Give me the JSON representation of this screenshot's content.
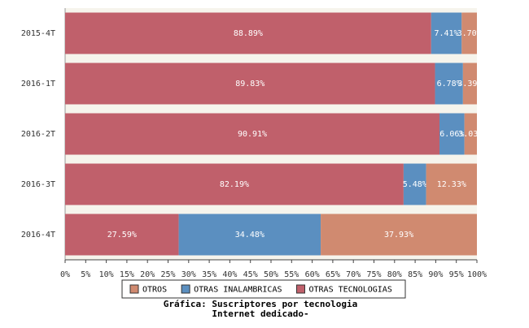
{
  "chart_data": {
    "type": "stacked_bar_horizontal",
    "title": "Gráfica: Suscriptores por tecnologia",
    "subtitle": "Internet dedicado-",
    "categories": [
      "2015-4T",
      "2016-1T",
      "2016-2T",
      "2016-3T",
      "2016-4T"
    ],
    "series": [
      {
        "name": "OTRAS TECNOLOGIAS",
        "color": "#c0606b",
        "values": [
          88.89,
          89.83,
          90.91,
          82.19,
          27.59
        ],
        "value_labels": [
          "88.89%",
          "89.83%",
          "90.91%",
          "82.19%",
          "27.59%"
        ]
      },
      {
        "name": "OTRAS INALAMBRICAS",
        "color": "#5b8fc0",
        "values": [
          7.41,
          6.78,
          6.06,
          5.48,
          34.48
        ],
        "value_labels": [
          "7.41%",
          "6.78%",
          "6.06%",
          "5.48%",
          "34.48%"
        ]
      },
      {
        "name": "OTROS",
        "color": "#d08a70",
        "values": [
          3.7,
          3.39,
          3.03,
          12.33,
          37.93
        ],
        "value_labels": [
          "3.70%",
          "3.39%",
          "3.03%",
          "12.33%",
          "37.93%"
        ]
      }
    ],
    "xlim": [
      0,
      100
    ],
    "xticks": [
      {
        "value": 0,
        "label": "0%"
      },
      {
        "value": 5,
        "label": "5%"
      },
      {
        "value": 10,
        "label": "10%"
      },
      {
        "value": 15,
        "label": "15%"
      },
      {
        "value": 20,
        "label": "20%"
      },
      {
        "value": 25,
        "label": "25%"
      },
      {
        "value": 30,
        "label": "30%"
      },
      {
        "value": 35,
        "label": "35%"
      },
      {
        "value": 40,
        "label": "40%"
      },
      {
        "value": 45,
        "label": "45%"
      },
      {
        "value": 50,
        "label": "50%"
      },
      {
        "value": 55,
        "label": "55%"
      },
      {
        "value": 60,
        "label": "60%"
      },
      {
        "value": 65,
        "label": "65%"
      },
      {
        "value": 70,
        "label": "70%"
      },
      {
        "value": 75,
        "label": "75%"
      },
      {
        "value": 80,
        "label": "80%"
      },
      {
        "value": 85,
        "label": "85%"
      },
      {
        "value": 90,
        "label": "90%"
      },
      {
        "value": 95,
        "label": "95%"
      },
      {
        "value": 100,
        "label": "100%"
      }
    ]
  }
}
